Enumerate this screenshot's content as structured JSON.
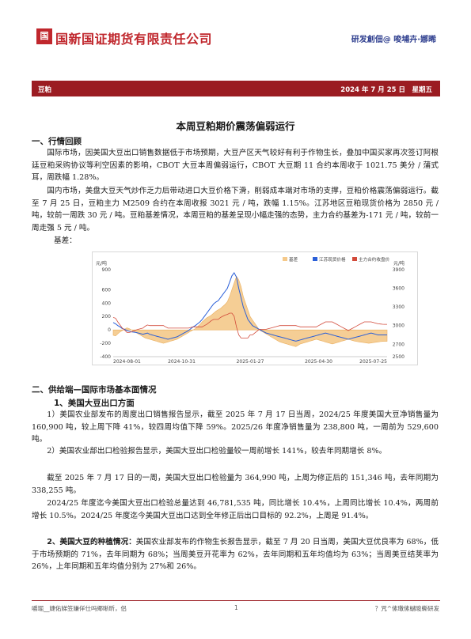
{
  "header": {
    "logo_text": "国新",
    "company": "国新国证期货有限责任公司",
    "slogan": "研发創佃@ 唆埔卉·娜晞"
  },
  "bar": {
    "category": "豆粕",
    "date": "2024 年 7 月 25 日　星期五"
  },
  "title": "本周豆粕期价震荡偏弱运行",
  "sections": {
    "s1": "一、行情回顾",
    "s1_p1": "国际市场，因美国大豆出口销售数据低于市场预期，大豆产区天气较好有利于作物生长，叠加中国买家再次签订阿根廷豆粕采购协议等利空因素的影响，CBOT 大豆本周偏弱运行，CBOT 大豆期 11 合约本周收于 1021.75 美分 / 蒲式耳，周跌幅 1.28%。",
    "s1_p2": "国内市场，美盘大豆天气炒作乏力后带动进口大豆价格下滑，削弱成本端对市场的支撑，豆粕价格震荡偏弱运行。截至 7 月 25 日，豆粕主力 M2509 合约在本周收报 3021 元 / 吨，跌幅 1.15%。江苏地区豆粕现货价格为 2850 元 / 吨，较前一周跌 30 元 / 吨。豆粕基差情况，本周豆粕的基差呈现小幅走强的态势，主力合约基差为-171 元 / 吨，较前一周走强 5 元 / 吨。",
    "s1_p3": "基差：",
    "s2": "二、供给端—国际市场基本面情况",
    "s2_1": "1、美国大豆出口方面",
    "s2_p1": "1）美国农业部发布的周度出口销售报告显示，截至 2025 年 7 月 17 日当周，2024/25 年度美国大豆净销售量为 160,900 吨，较上周下降 41%，较四周均值下降 59%。2025/26 年度净销售量为 238,800 吨，一周前为 529,600 吨。",
    "s2_p2": "2）美国农业部出口检验报告显示，美国大豆出口检验量较一周前增长 141%，较去年同期增长 8%。",
    "s2_p3": "截至 2025 年 7 月 17 日的一周，美国大豆出口检验量为 364,990 吨，上周为修正后的 151,346 吨，去年同期为 338,255 吨。",
    "s2_p4": "2024/25 年度迄今美国大豆出口检验总量达到 46,781,535 吨，同比增长 10.4%，上周同比增长 10.4%，两周前增长 10.5%。2024/25 年度迄今美国大豆出口达到全年修正后出口目标的 92.2%，上周是 91.4%。",
    "s2_2_label": "2、美国大豆的种植情况：",
    "s2_p5": "美国农业部发布的作物生长报告显示，截至 7 月 20 日当周，美国大豆优良率为 68%，低于市场预期的 71%，去年同期为 68%；当周美豆开花率为 62%，去年同期和五年均值均为 63%；当周美豆结荚率为 26%，上年同期和五年均值分别为 27%和 26%。"
  },
  "footer": {
    "left": "嚼堀__婕佑娣笠嫌佯仕吗鄊晰昕，侣",
    "page": "1",
    "right": "？咒^傃璥傃蠩晙蟖研发"
  },
  "chart_data": {
    "type": "line",
    "legend": [
      "基差",
      "江苏现货价格",
      "主力合约收盘价"
    ],
    "ylabel_left": "元/吨",
    "ylabel_right": "元/吨",
    "left_ticks": [
      "900",
      "600",
      "400",
      "200",
      "0",
      "-200",
      "-400"
    ],
    "right_ticks": [
      "3900",
      "3600",
      "3300",
      "3000",
      "2700",
      "2500"
    ],
    "x_ticks": [
      "2024-08-01",
      "2024-10-31",
      "2025-01-27",
      "2025-04-30",
      "2025-07-25"
    ],
    "ylim_left": [
      -400,
      900
    ],
    "ylim_right": [
      2500,
      3900
    ],
    "x": [
      0,
      1,
      2,
      3,
      4,
      5,
      6,
      7,
      8,
      9,
      10,
      11,
      12,
      13,
      14,
      15,
      16,
      17,
      18,
      19,
      20,
      21,
      22,
      23,
      24,
      25,
      26,
      27,
      28,
      29,
      30,
      31,
      32,
      33,
      34,
      35,
      36,
      37,
      38,
      39,
      40,
      41,
      42,
      43,
      44,
      45,
      46,
      47,
      48,
      49,
      50,
      51,
      52,
      53,
      54,
      55,
      56,
      57,
      58,
      59,
      60,
      61,
      62,
      63,
      64,
      65,
      66,
      67,
      68,
      69,
      70,
      71,
      72,
      73,
      74,
      75,
      76,
      77,
      78,
      79,
      80,
      81,
      82,
      83,
      84,
      85,
      86,
      87,
      88,
      89,
      90,
      91,
      92,
      93,
      94,
      95,
      96,
      97,
      98,
      99,
      100,
      101,
      102,
      103,
      104,
      105,
      106,
      107,
      108,
      109,
      110,
      111,
      112,
      113,
      114,
      115,
      116,
      117,
      118,
      119,
      120
    ],
    "basis": [
      -80,
      -90,
      -60,
      -30,
      -10,
      10,
      30,
      20,
      0,
      -20,
      -40,
      -60,
      -80,
      -100,
      -120,
      -130,
      -140,
      -150,
      -160,
      -170,
      -180,
      -190,
      -200,
      -190,
      -180,
      -170,
      -160,
      -150,
      -140,
      -120,
      -100,
      -80,
      -60,
      -40,
      -20,
      0,
      20,
      50,
      80,
      120,
      150,
      180,
      200,
      220,
      250,
      280,
      300,
      320,
      350,
      380,
      420,
      500,
      600,
      700,
      800,
      750,
      650,
      500,
      400,
      300,
      200,
      150,
      100,
      50,
      0,
      -20,
      -40,
      -60,
      -80,
      -100,
      -120,
      -140,
      -160,
      -180,
      -190,
      -200,
      -210,
      -220,
      -230,
      -240,
      -250,
      -230,
      -210,
      -200,
      -190,
      -180,
      -170,
      -160,
      -150,
      -140,
      -150,
      -160,
      -170,
      -180,
      -190,
      -200,
      -210,
      -200,
      -190,
      -180,
      -170,
      -160,
      -150,
      -140,
      -150,
      -160,
      -170,
      -175,
      -180,
      -185,
      -190,
      -195,
      -200,
      -195,
      -190,
      -185,
      -180,
      -176,
      -172,
      -171,
      -171
    ],
    "spot": [
      3050,
      3030,
      3000,
      2980,
      2950,
      2940,
      2920,
      2910,
      2900,
      2895,
      2890,
      2880,
      2870,
      2860,
      2870,
      2880,
      2860,
      2850,
      2840,
      2830,
      2820,
      2810,
      2800,
      2790,
      2780,
      2790,
      2800,
      2810,
      2820,
      2840,
      2860,
      2880,
      2900,
      2920,
      2950,
      2980,
      3000,
      3030,
      3060,
      3100,
      3150,
      3200,
      3250,
      3300,
      3350,
      3380,
      3400,
      3450,
      3500,
      3550,
      3600,
      3700,
      3800,
      3850,
      3780,
      3600,
      3450,
      3300,
      3200,
      3100,
      3050,
      3000,
      2980,
      2960,
      2940,
      2920,
      2900,
      2880,
      2870,
      2860,
      2850,
      2840,
      2830,
      2820,
      2810,
      2800,
      2790,
      2780,
      2770,
      2760,
      2750,
      2760,
      2770,
      2780,
      2790,
      2800,
      2810,
      2820,
      2830,
      2840,
      2850,
      2860,
      2870,
      2880,
      2870,
      2860,
      2850,
      2840,
      2830,
      2820,
      2810,
      2800,
      2790,
      2780,
      2790,
      2800,
      2810,
      2820,
      2830,
      2840,
      2850,
      2860,
      2870,
      2880,
      2870,
      2860,
      2850,
      2850,
      2850,
      2850,
      2850
    ],
    "close": [
      3130,
      3120,
      3060,
      3010,
      2960,
      2930,
      2890,
      2890,
      2900,
      2915,
      2930,
      2940,
      2950,
      2960,
      2990,
      3010,
      3000,
      3000,
      3000,
      3000,
      3000,
      3000,
      3000,
      2980,
      2960,
      2960,
      2960,
      2960,
      2960,
      2960,
      2960,
      2960,
      2960,
      2960,
      2970,
      2980,
      2980,
      2980,
      2980,
      2980,
      3000,
      3020,
      3050,
      3080,
      3100,
      3100,
      3100,
      3130,
      3150,
      3170,
      3180,
      3200,
      3200,
      3150,
      2980,
      2850,
      2800,
      2800,
      2800,
      2800,
      2850,
      2850,
      2880,
      2910,
      2940,
      2940,
      2940,
      2940,
      2950,
      2960,
      2970,
      2980,
      2990,
      3000,
      3000,
      3000,
      3000,
      3000,
      3000,
      3000,
      3000,
      2990,
      2980,
      2980,
      2980,
      2980,
      2980,
      2980,
      2980,
      2980,
      3000,
      3020,
      3040,
      3060,
      3060,
      3060,
      3060,
      3040,
      3020,
      3000,
      2980,
      2960,
      2940,
      2920,
      2940,
      2960,
      2980,
      3000,
      3020,
      3040,
      3060,
      3060,
      3060,
      3060,
      3050,
      3040,
      3030,
      3026,
      3022,
      3021,
      3021
    ]
  }
}
